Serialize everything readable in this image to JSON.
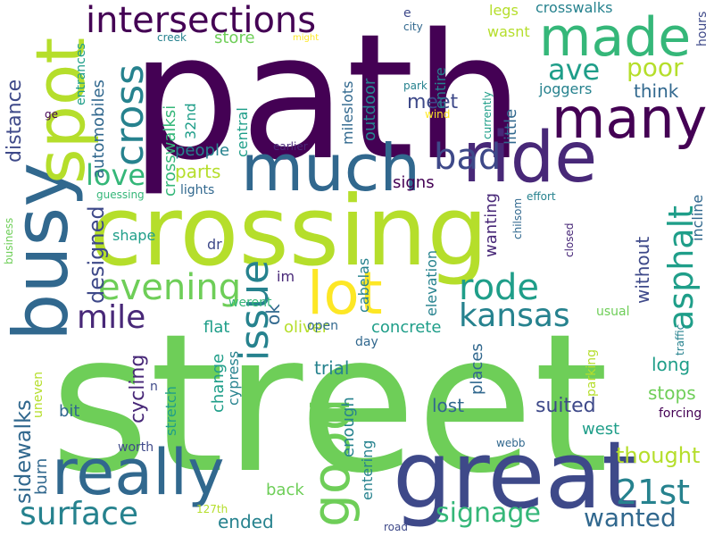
{
  "colors": {
    "background": "#ffffff",
    "dark_purple": "#440154",
    "indigo": "#482878",
    "purple_blue": "#3e4989",
    "blue": "#31688e",
    "teal_blue": "#26828e",
    "teal": "#1f9e89",
    "green": "#35b779",
    "light_green": "#6ece58",
    "lime": "#b5de2b",
    "yellow": "#fde725"
  },
  "words": [
    {
      "text": "path",
      "color": "#440154"
    },
    {
      "text": "street",
      "color": "#6ece58"
    },
    {
      "text": "crossing",
      "color": "#b5de2b"
    },
    {
      "text": "great",
      "color": "#3e4989"
    },
    {
      "text": "busy",
      "color": "#31688e"
    },
    {
      "text": "spot",
      "color": "#b5de2b"
    },
    {
      "text": "much",
      "color": "#31688e"
    },
    {
      "text": "ride",
      "color": "#482878"
    },
    {
      "text": "made",
      "color": "#35b779"
    },
    {
      "text": "many",
      "color": "#440154"
    },
    {
      "text": "lot",
      "color": "#fde725"
    },
    {
      "text": "really",
      "color": "#31688e"
    },
    {
      "text": "good",
      "color": "#6ece58"
    },
    {
      "text": "intersections",
      "color": "#440154"
    },
    {
      "text": "cross",
      "color": "#26828e"
    },
    {
      "text": "ave",
      "color": "#1f9e89"
    },
    {
      "text": "poor",
      "color": "#b5de2b"
    },
    {
      "text": "bad",
      "color": "#3e4989"
    },
    {
      "text": "love",
      "color": "#35b779"
    },
    {
      "text": "evening",
      "color": "#6ece58"
    },
    {
      "text": "mile",
      "color": "#482878"
    },
    {
      "text": "issue",
      "color": "#26828e"
    },
    {
      "text": "rode",
      "color": "#1f9e89"
    },
    {
      "text": "kansas",
      "color": "#26828e"
    },
    {
      "text": "asphalt",
      "color": "#1f9e89"
    },
    {
      "text": "surface",
      "color": "#26828e"
    },
    {
      "text": "21st",
      "color": "#26828e"
    },
    {
      "text": "signage",
      "color": "#35b779"
    },
    {
      "text": "wanted",
      "color": "#31688e"
    },
    {
      "text": "sidewalks",
      "color": "#31688e"
    },
    {
      "text": "designed",
      "color": "#3e4989"
    },
    {
      "text": "distance",
      "color": "#3e4989"
    },
    {
      "text": "automobiles",
      "color": "#31688e"
    },
    {
      "text": "crosswalksi",
      "color": "#35b779"
    },
    {
      "text": "entrances",
      "color": "#1f9e89"
    },
    {
      "text": "32nd",
      "color": "#1f9e89"
    },
    {
      "text": "store",
      "color": "#6ece58"
    },
    {
      "text": "central",
      "color": "#1f9e89"
    },
    {
      "text": "people",
      "color": "#26828e"
    },
    {
      "text": "parts",
      "color": "#b5de2b"
    },
    {
      "text": "lights",
      "color": "#31688e"
    },
    {
      "text": "meet",
      "color": "#3e4989"
    },
    {
      "text": "signs",
      "color": "#440154"
    },
    {
      "text": "mileslots",
      "color": "#31688e"
    },
    {
      "text": "outdoor",
      "color": "#26828e"
    },
    {
      "text": "entire",
      "color": "#26828e"
    },
    {
      "text": "legs",
      "color": "#b5de2b"
    },
    {
      "text": "crosswalks",
      "color": "#26828e"
    },
    {
      "text": "wasnt",
      "color": "#b5de2b"
    },
    {
      "text": "joggers",
      "color": "#26828e"
    },
    {
      "text": "think",
      "color": "#31688e"
    },
    {
      "text": "little",
      "color": "#31688e"
    },
    {
      "text": "hours",
      "color": "#3e4989"
    },
    {
      "text": "incline",
      "color": "#31688e"
    },
    {
      "text": "without",
      "color": "#3e4989"
    },
    {
      "text": "wanting",
      "color": "#482878"
    },
    {
      "text": "elevation",
      "color": "#26828e"
    },
    {
      "text": "cabelas",
      "color": "#26828e"
    },
    {
      "text": "concrete",
      "color": "#1f9e89"
    },
    {
      "text": "oliver",
      "color": "#b5de2b"
    },
    {
      "text": "ok",
      "color": "#31688e"
    },
    {
      "text": "im",
      "color": "#482878"
    },
    {
      "text": "flat",
      "color": "#1f9e89"
    },
    {
      "text": "shape",
      "color": "#1f9e89"
    },
    {
      "text": "dr",
      "color": "#3e4989"
    },
    {
      "text": "werent",
      "color": "#35b779"
    },
    {
      "text": "cycling",
      "color": "#482878"
    },
    {
      "text": "change",
      "color": "#1f9e89"
    },
    {
      "text": "cypress",
      "color": "#26828e"
    },
    {
      "text": "trial",
      "color": "#26828e"
    },
    {
      "text": "places",
      "color": "#31688e"
    },
    {
      "text": "long",
      "color": "#1f9e89"
    },
    {
      "text": "stops",
      "color": "#6ece58"
    },
    {
      "text": "suited",
      "color": "#3e4989"
    },
    {
      "text": "lost",
      "color": "#31688e"
    },
    {
      "text": "west",
      "color": "#1f9e89"
    },
    {
      "text": "thought",
      "color": "#b5de2b"
    },
    {
      "text": "enough",
      "color": "#26828e"
    },
    {
      "text": "entering",
      "color": "#26828e"
    },
    {
      "text": "stretch",
      "color": "#1f9e89"
    },
    {
      "text": "burn",
      "color": "#31688e"
    },
    {
      "text": "uneven",
      "color": "#b5de2b"
    },
    {
      "text": "bit",
      "color": "#31688e"
    },
    {
      "text": "back",
      "color": "#6ece58"
    },
    {
      "text": "ended",
      "color": "#26828e"
    },
    {
      "text": "parking",
      "color": "#b5de2b"
    },
    {
      "text": "open",
      "color": "#31688e"
    },
    {
      "text": "day",
      "color": "#31688e"
    },
    {
      "text": "usual",
      "color": "#6ece58"
    },
    {
      "text": "traffic",
      "color": "#26828e"
    },
    {
      "text": "forcing",
      "color": "#440154"
    },
    {
      "text": "webb",
      "color": "#31688e"
    },
    {
      "text": "worth",
      "color": "#3e4989"
    },
    {
      "text": "127th",
      "color": "#b5de2b"
    },
    {
      "text": "road",
      "color": "#3e4989"
    },
    {
      "text": "closed",
      "color": "#482878"
    },
    {
      "text": "chilsom",
      "color": "#31688e"
    },
    {
      "text": "effort",
      "color": "#26828e"
    },
    {
      "text": "guessing",
      "color": "#35b779"
    },
    {
      "text": "business",
      "color": "#6ece58"
    },
    {
      "text": "n",
      "color": "#3e4989"
    },
    {
      "text": "earlier",
      "color": "#482878"
    },
    {
      "text": "currently",
      "color": "#1f9e89"
    },
    {
      "text": "wind",
      "color": "#fde725"
    },
    {
      "text": "park",
      "color": "#26828e"
    },
    {
      "text": "city",
      "color": "#31688e"
    },
    {
      "text": "e",
      "color": "#3e4989"
    },
    {
      "text": "creek",
      "color": "#26828e"
    },
    {
      "text": "might",
      "color": "#fde725"
    },
    {
      "text": "ge",
      "color": "#440154"
    }
  ]
}
